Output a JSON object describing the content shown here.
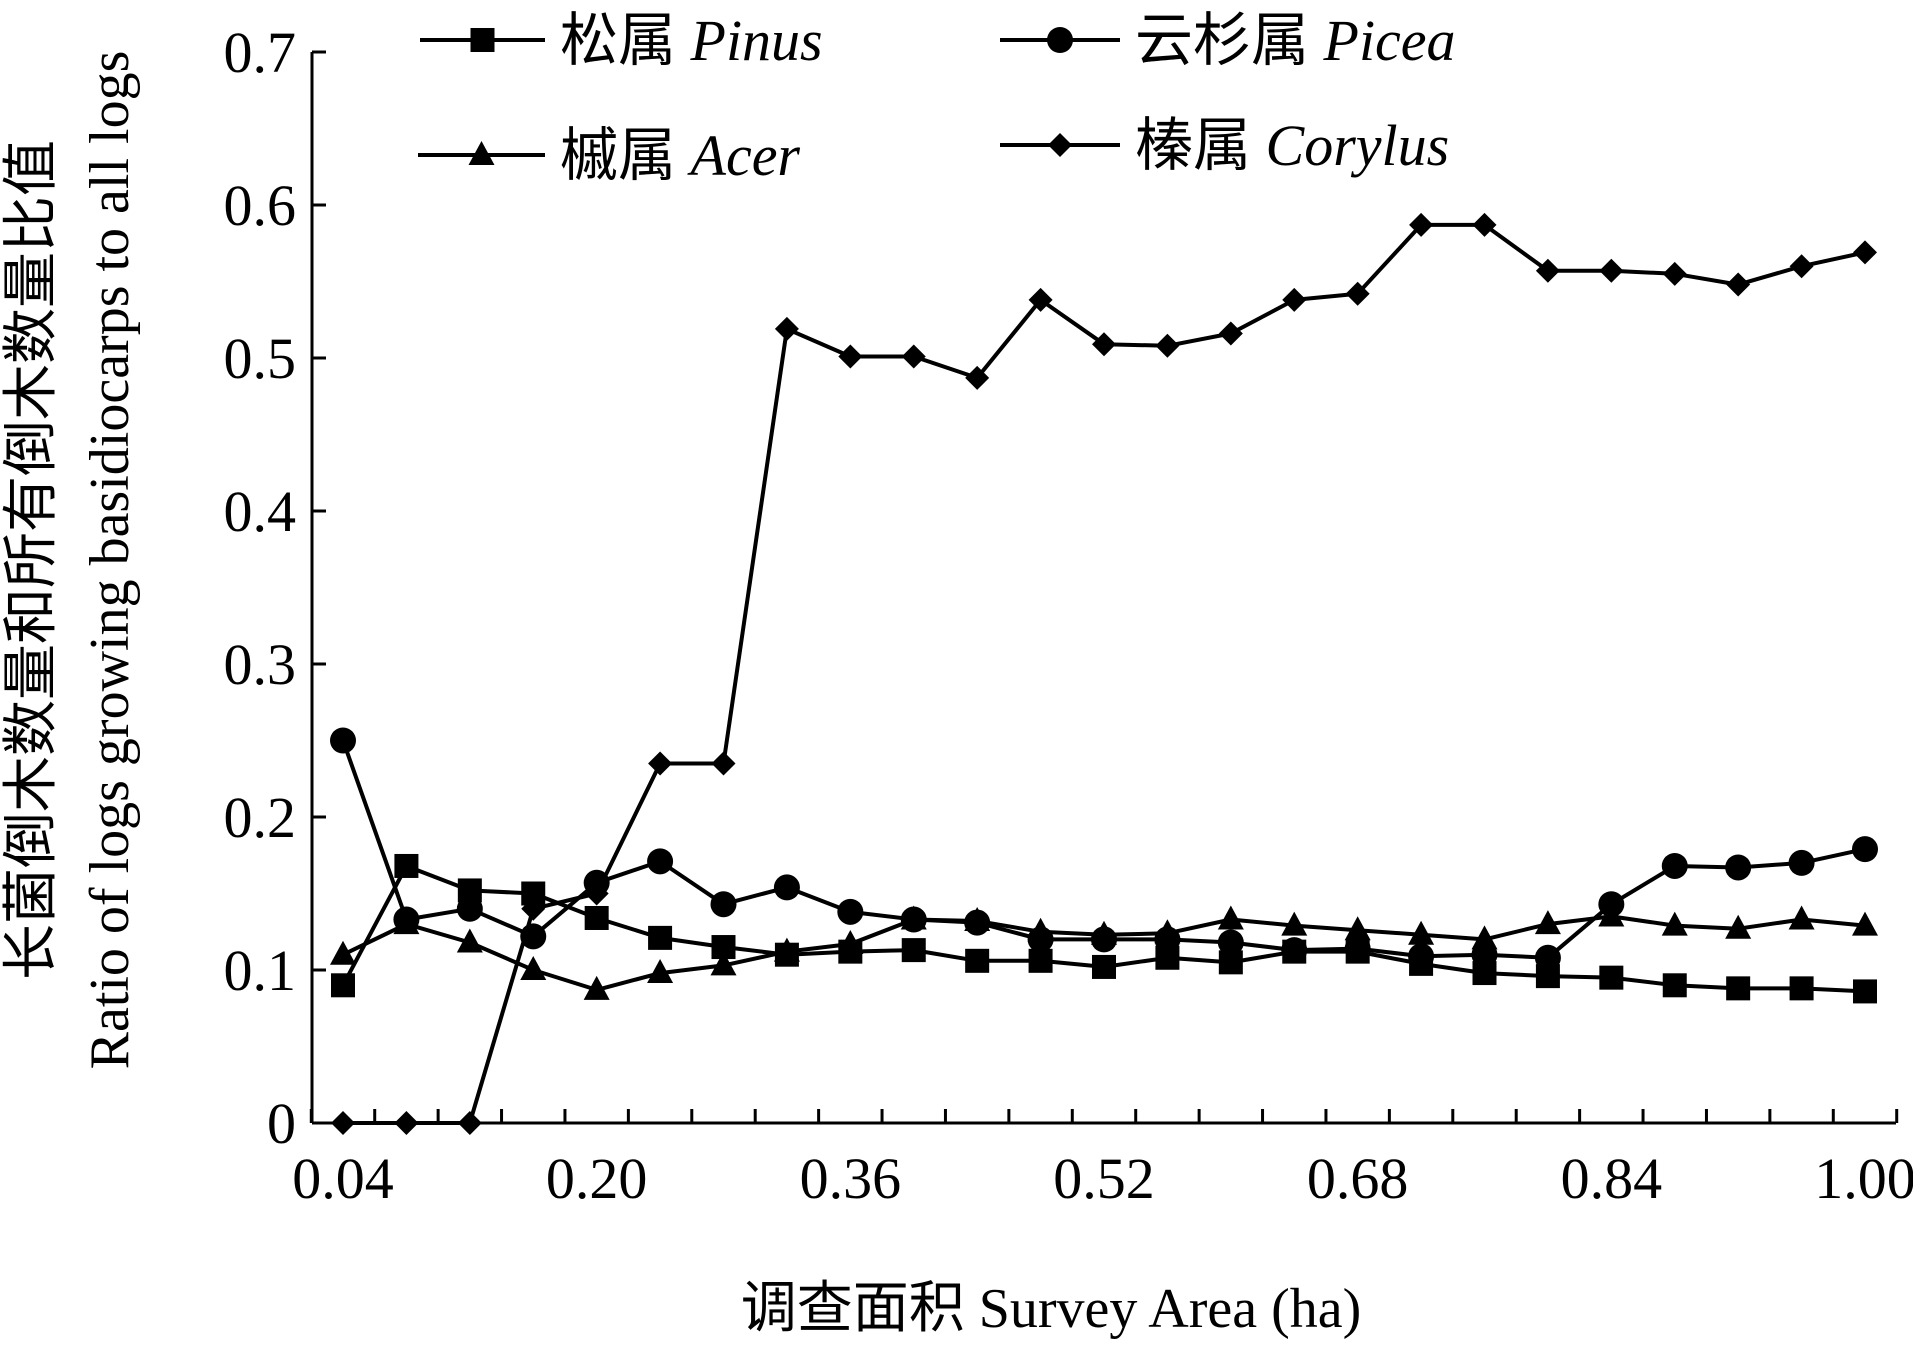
{
  "chart_data": {
    "type": "line",
    "xlabel": "调查面积 Survey Area (ha)",
    "ylabel_cn": "长菌倒木数量和所有倒木数量比值",
    "ylabel_en": "Ratio of logs growing basidiocarps to all logs",
    "xlim": [
      0.04,
      1.0
    ],
    "ylim": [
      0,
      0.7
    ],
    "x_tick_labels": [
      "0.04",
      "0.20",
      "0.36",
      "0.52",
      "0.68",
      "0.84",
      "1.00"
    ],
    "y_tick_labels": [
      "0",
      "0.1",
      "0.2",
      "0.3",
      "0.4",
      "0.5",
      "0.6",
      "0.7"
    ],
    "legend_position": "top",
    "x": [
      0.04,
      0.08,
      0.12,
      0.16,
      0.2,
      0.24,
      0.28,
      0.32,
      0.36,
      0.4,
      0.44,
      0.48,
      0.52,
      0.56,
      0.6,
      0.64,
      0.68,
      0.72,
      0.76,
      0.8,
      0.84,
      0.88,
      0.92,
      0.96,
      1.0
    ],
    "series": [
      {
        "name_cn": "松属",
        "name_latin": "Pinus",
        "marker": "square",
        "values": [
          0.09,
          0.168,
          0.152,
          0.15,
          0.134,
          0.121,
          0.115,
          0.11,
          0.112,
          0.113,
          0.106,
          0.106,
          0.102,
          0.108,
          0.105,
          0.112,
          0.112,
          0.104,
          0.098,
          0.096,
          0.095,
          0.09,
          0.088,
          0.088,
          0.086
        ]
      },
      {
        "name_cn": "云杉属",
        "name_latin": "Picea",
        "marker": "circle",
        "values": [
          0.25,
          0.133,
          0.14,
          0.122,
          0.157,
          0.171,
          0.143,
          0.154,
          0.138,
          0.133,
          0.131,
          0.12,
          0.12,
          0.12,
          0.118,
          0.113,
          0.114,
          0.109,
          0.11,
          0.108,
          0.143,
          0.168,
          0.167,
          0.17,
          0.179
        ]
      },
      {
        "name_cn": "槭属",
        "name_latin": "Acer",
        "marker": "triangle",
        "values": [
          0.11,
          0.13,
          0.118,
          0.1,
          0.087,
          0.098,
          0.103,
          0.112,
          0.117,
          0.133,
          0.132,
          0.125,
          0.123,
          0.124,
          0.133,
          0.129,
          0.126,
          0.123,
          0.12,
          0.13,
          0.135,
          0.129,
          0.127,
          0.133,
          0.129
        ]
      },
      {
        "name_cn": "榛属",
        "name_latin": "Corylus",
        "marker": "diamond",
        "values": [
          0.0,
          0.0,
          0.0,
          0.14,
          0.15,
          0.235,
          0.235,
          0.519,
          0.501,
          0.501,
          0.487,
          0.538,
          0.509,
          0.508,
          0.516,
          0.538,
          0.542,
          0.587,
          0.587,
          0.557,
          0.557,
          0.555,
          0.548,
          0.56,
          0.569
        ]
      }
    ]
  }
}
